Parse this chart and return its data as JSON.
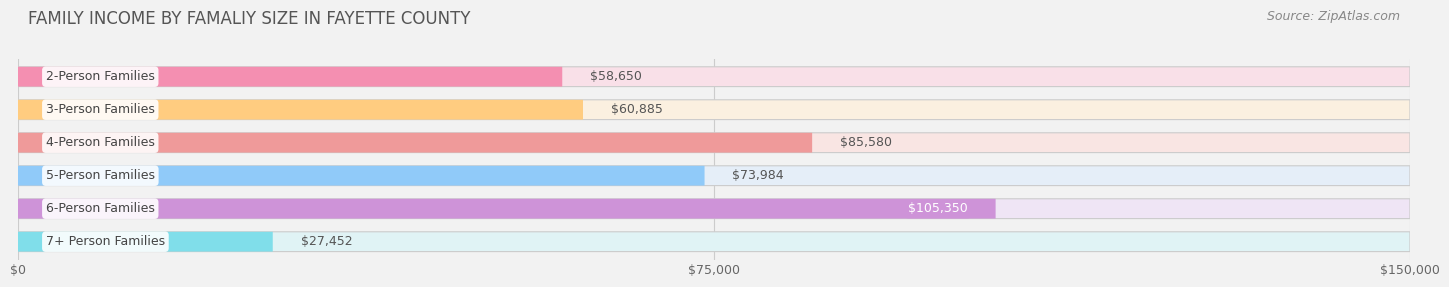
{
  "title": "FAMILY INCOME BY FAMALIY SIZE IN FAYETTE COUNTY",
  "source": "Source: ZipAtlas.com",
  "categories": [
    "2-Person Families",
    "3-Person Families",
    "4-Person Families",
    "5-Person Families",
    "6-Person Families",
    "7+ Person Families"
  ],
  "values": [
    58650,
    60885,
    85580,
    73984,
    105350,
    27452
  ],
  "bar_colors": [
    "#F48FB1",
    "#FFCC80",
    "#EF9A9A",
    "#90CAF9",
    "#CE93D8",
    "#80DEEA"
  ],
  "bar_colors_light": [
    "#F9E0E8",
    "#FBF0E0",
    "#F9E5E3",
    "#E5EEF8",
    "#EFE5F5",
    "#E0F3F5"
  ],
  "value_labels": [
    "$58,650",
    "$60,885",
    "$85,580",
    "$73,984",
    "$105,350",
    "$27,452"
  ],
  "label_inside": [
    false,
    false,
    false,
    false,
    true,
    false
  ],
  "xlim": [
    0,
    150000
  ],
  "xticks": [
    0,
    75000,
    150000
  ],
  "xticklabels": [
    "$0",
    "$75,000",
    "$150,000"
  ],
  "title_fontsize": 12,
  "source_fontsize": 9,
  "label_fontsize": 9,
  "tick_fontsize": 9,
  "background_color": "#f2f2f2",
  "bar_bg_color": "#e8e8e8"
}
